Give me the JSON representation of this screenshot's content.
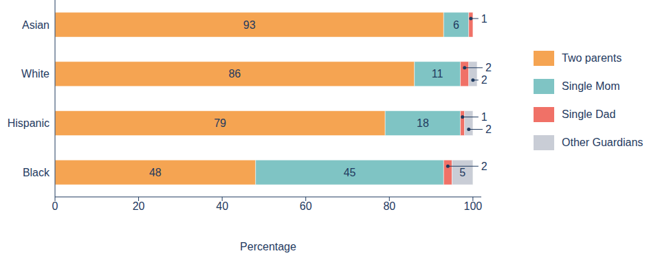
{
  "chart_data": {
    "type": "bar",
    "orientation": "horizontal",
    "stacked": true,
    "data_labels": true,
    "legend": "right",
    "grid": false,
    "xlabel": "Percentage",
    "categories": [
      "Asian",
      "White",
      "Hispanic",
      "Black"
    ],
    "xlim": [
      0,
      102
    ],
    "xticks": [
      0,
      20,
      40,
      60,
      80,
      100
    ],
    "series": [
      {
        "name": "Two parents",
        "color": "#f5a452",
        "values": [
          93,
          86,
          79,
          48
        ]
      },
      {
        "name": "Single Mom",
        "color": "#7fc4c4",
        "values": [
          6,
          11,
          18,
          45
        ]
      },
      {
        "name": "Single Dad",
        "color": "#f07167",
        "values": [
          1,
          2,
          1,
          2
        ]
      },
      {
        "name": "Other Guardians",
        "color": "#c9cdd6",
        "values": [
          0,
          2,
          2,
          5
        ]
      }
    ]
  }
}
